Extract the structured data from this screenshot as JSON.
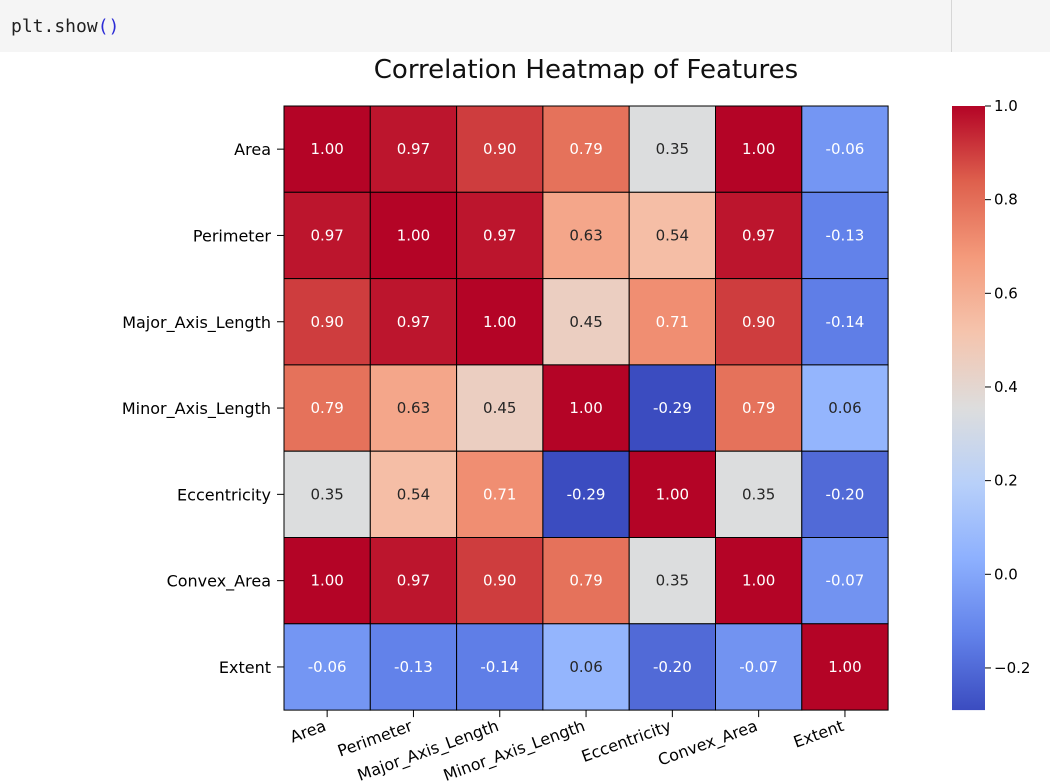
{
  "code": {
    "prefix": "plt.show",
    "parens": "()"
  },
  "chart_data": {
    "type": "heatmap",
    "title": "Correlation Heatmap of Features",
    "xlabel": "",
    "ylabel": "",
    "colormap": "coolwarm",
    "vmin": -0.29,
    "vmax": 1.0,
    "annotated": true,
    "annotation_format": "0.00",
    "cell_border_color": "#000000",
    "row_labels": [
      "Area",
      "Perimeter",
      "Major_Axis_Length",
      "Minor_Axis_Length",
      "Eccentricity",
      "Convex_Area",
      "Extent"
    ],
    "col_labels": [
      "Area",
      "Perimeter",
      "Major_Axis_Length",
      "Minor_Axis_Length",
      "Eccentricity",
      "Convex_Area",
      "Extent"
    ],
    "values": [
      [
        1.0,
        0.97,
        0.9,
        0.79,
        0.35,
        1.0,
        -0.06
      ],
      [
        0.97,
        1.0,
        0.97,
        0.63,
        0.54,
        0.97,
        -0.13
      ],
      [
        0.9,
        0.97,
        1.0,
        0.45,
        0.71,
        0.9,
        -0.14
      ],
      [
        0.79,
        0.63,
        0.45,
        1.0,
        -0.29,
        0.79,
        0.06
      ],
      [
        0.35,
        0.54,
        0.71,
        -0.29,
        1.0,
        0.35,
        -0.2
      ],
      [
        1.0,
        0.97,
        0.9,
        0.79,
        0.35,
        1.0,
        -0.07
      ],
      [
        -0.06,
        -0.13,
        -0.14,
        0.06,
        -0.2,
        -0.07,
        1.0
      ]
    ],
    "colorbar": {
      "ticks": [
        1.0,
        0.8,
        0.6,
        0.4,
        0.2,
        0.0,
        -0.2
      ],
      "tick_labels": [
        "1.0",
        "0.8",
        "0.6",
        "0.4",
        "0.2",
        "0.0",
        "−0.2"
      ]
    }
  }
}
